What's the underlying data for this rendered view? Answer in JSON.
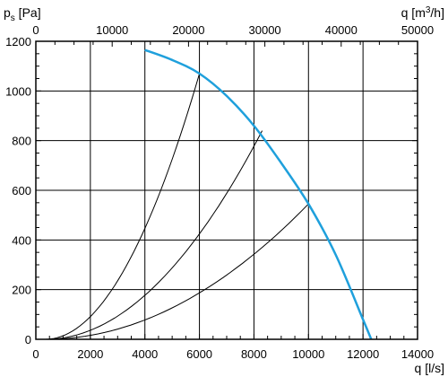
{
  "chart_data": {
    "type": "line",
    "x_bottom": {
      "label": "q [l/s]",
      "label_main": "q [",
      "label_unit": "l/s",
      "label_close": "]",
      "range": [
        0,
        14000
      ],
      "ticks": [
        "0",
        "2000",
        "4000",
        "6000",
        "8000",
        "10000",
        "12000",
        "14000"
      ]
    },
    "x_top": {
      "label_main": "q [m",
      "label_sup": "3",
      "label_close": "/h]",
      "range": [
        0,
        50000
      ],
      "ticks": [
        "0",
        "10000",
        "20000",
        "30000",
        "40000",
        "50000"
      ]
    },
    "y": {
      "label_main": "p",
      "label_sub": "s",
      "label_close": " [Pa]",
      "range": [
        0,
        1200
      ],
      "ticks": [
        "0",
        "200",
        "400",
        "600",
        "800",
        "1000",
        "1200"
      ]
    },
    "grid": true,
    "fan_curve": {
      "color": "#1fa0dc",
      "x": [
        4000,
        5000,
        6000,
        7000,
        8000,
        9000,
        10000,
        11000,
        12000,
        12300
      ],
      "y": [
        1165,
        1125,
        1070,
        980,
        860,
        710,
        545,
        340,
        80,
        0
      ]
    },
    "system_curves": [
      {
        "x_end": 6000,
        "y_end": 1070
      },
      {
        "x_end": 8300,
        "y_end": 840
      },
      {
        "x_end": 10000,
        "y_end": 545
      }
    ],
    "system_curve_start": [
      350,
      0
    ],
    "system_curve_color": "#000000"
  }
}
